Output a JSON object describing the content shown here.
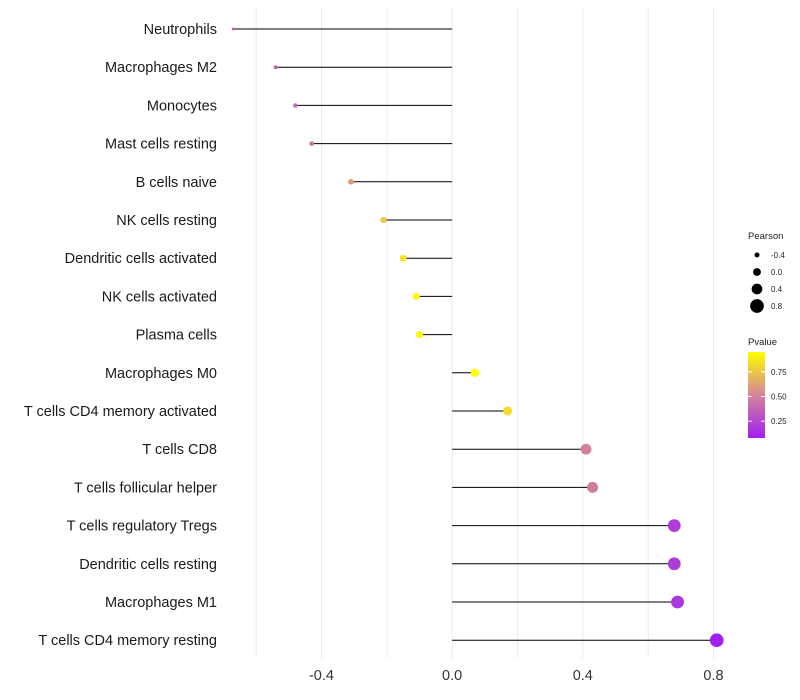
{
  "chart_data": {
    "type": "lollipop",
    "title": "",
    "xlabel": "",
    "ylabel": "",
    "xlim": [
      -0.68,
      0.82
    ],
    "xticks": [
      -0.4,
      0.0,
      0.4,
      0.8
    ],
    "xtick_labels": [
      "-0.4",
      "0.0",
      "0.4",
      "0.8"
    ],
    "grid": true,
    "categories": [
      "Neutrophils",
      "Macrophages M2",
      "Monocytes",
      "Mast cells resting",
      "B cells naive",
      "NK cells resting",
      "Dendritic cells activated",
      "NK cells activated",
      "Plasma cells",
      "Macrophages M0",
      "T cells CD4 memory activated",
      "T cells CD8",
      "T cells follicular helper",
      "T cells regulatory  Tregs",
      "Dendritic cells resting",
      "Macrophages M1",
      "T cells CD4 memory resting"
    ],
    "pearson": [
      -0.67,
      -0.54,
      -0.48,
      -0.43,
      -0.31,
      -0.21,
      -0.15,
      -0.11,
      -0.1,
      0.07,
      0.17,
      0.41,
      0.43,
      0.68,
      0.68,
      0.69,
      0.81
    ],
    "pvalue": [
      0.35,
      0.35,
      0.4,
      0.45,
      0.6,
      0.75,
      0.85,
      0.92,
      0.93,
      0.95,
      0.82,
      0.5,
      0.48,
      0.2,
      0.2,
      0.18,
      0.08
    ],
    "size_legend": {
      "title": "Pearson",
      "values": [
        -0.4,
        0.0,
        0.4,
        0.8
      ],
      "labels": [
        "-0.4",
        "0.0",
        "0.4",
        "0.8"
      ]
    },
    "color_legend": {
      "title": "Pvalue",
      "range": [
        0.08,
        0.95
      ],
      "ticks": [
        0.25,
        0.5,
        0.75
      ],
      "tick_labels": [
        "0.25",
        "0.50",
        "0.75"
      ],
      "low_color": "#a020f0",
      "mid_color": "#d4849a",
      "high_color": "#ffff00"
    },
    "segment_color": "#000000",
    "grid_color": "#ebebeb",
    "category_legend_note": "Pearson"
  }
}
